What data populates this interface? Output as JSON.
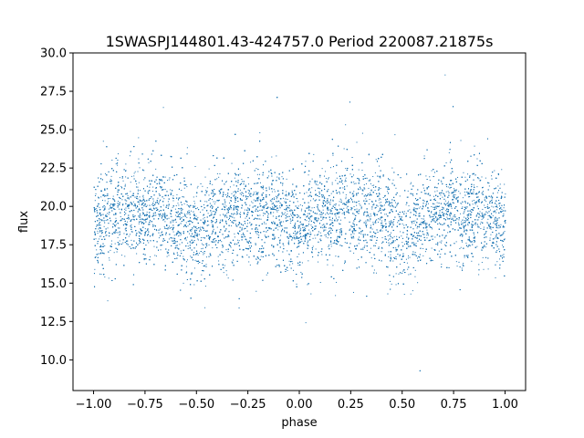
{
  "chart_data": {
    "type": "scatter",
    "title": "1SWASPJ144801.43-424757.0 Period 220087.21875s",
    "xlabel": "phase",
    "ylabel": "flux",
    "xlim": [
      -1.1,
      1.1
    ],
    "ylim": [
      8.0,
      30.0
    ],
    "x_ticks": [
      -1.0,
      -0.75,
      -0.5,
      -0.25,
      0.0,
      0.25,
      0.5,
      0.75,
      1.0
    ],
    "x_tick_labels": [
      "−1.00",
      "−0.75",
      "−0.50",
      "−0.25",
      "0.00",
      "0.25",
      "0.50",
      "0.75",
      "1.00"
    ],
    "y_ticks": [
      10.0,
      12.5,
      15.0,
      17.5,
      20.0,
      22.5,
      25.0,
      27.5,
      30.0
    ],
    "y_tick_labels": [
      "10.0",
      "12.5",
      "15.0",
      "17.5",
      "20.0",
      "22.5",
      "25.0",
      "27.5",
      "30.0"
    ],
    "grid": false,
    "series_color": "#1f77b4",
    "phase_range": [
      -1.0,
      1.0
    ],
    "profile": {
      "phase": [
        -1.0,
        -0.9,
        -0.8,
        -0.7,
        -0.6,
        -0.5,
        -0.4,
        -0.3,
        -0.2,
        -0.1,
        0.0,
        0.1,
        0.2,
        0.3,
        0.4,
        0.5,
        0.6,
        0.7,
        0.8,
        0.9,
        1.0
      ],
      "flux_center": [
        18.8,
        19.4,
        19.7,
        19.8,
        19.3,
        18.2,
        19.2,
        19.7,
        19.5,
        19.2,
        18.8,
        19.4,
        19.7,
        19.8,
        19.3,
        18.2,
        19.2,
        19.7,
        19.5,
        19.2,
        18.8
      ],
      "flux_spread": 1.6
    },
    "flux_extent": [
      9.0,
      29.0
    ]
  }
}
